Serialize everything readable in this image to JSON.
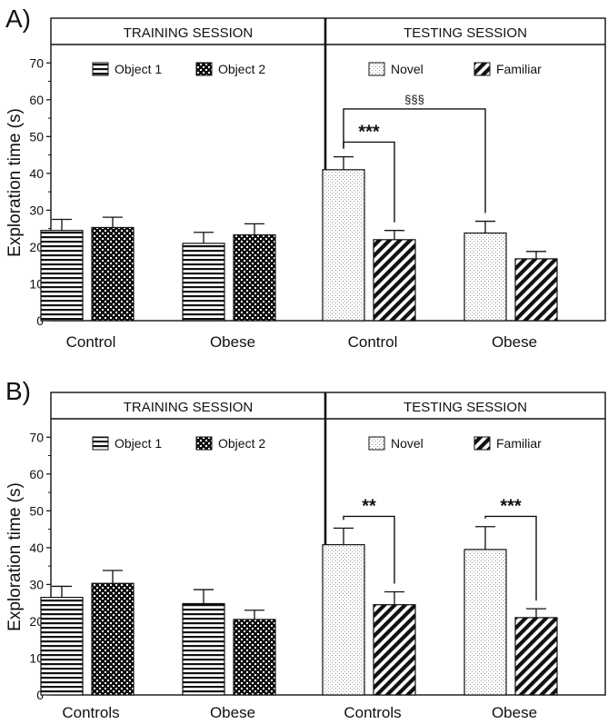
{
  "chart_data": [
    {
      "type": "bar",
      "panel_label": "A)",
      "ylabel": "Exploration time (s)",
      "ylim": [
        0,
        75
      ],
      "yticks": [
        0,
        10,
        20,
        30,
        40,
        50,
        60,
        70
      ],
      "sessions": [
        {
          "title": "TRAINING SESSION",
          "legend": [
            {
              "name": "Object 1",
              "pattern": "hstripes"
            },
            {
              "name": "Object 2",
              "pattern": "checker"
            }
          ],
          "categories": [
            "Control",
            "Obese"
          ],
          "series": [
            {
              "name": "Object 1",
              "pattern": "hstripes",
              "values": [
                24.5,
                21
              ],
              "errors": [
                3,
                3
              ]
            },
            {
              "name": "Object 2",
              "pattern": "checker",
              "values": [
                25.3,
                23.3
              ],
              "errors": [
                2.8,
                3
              ]
            }
          ],
          "annotations": []
        },
        {
          "title": "TESTING SESSION",
          "legend": [
            {
              "name": "Novel",
              "pattern": "dots"
            },
            {
              "name": "Familiar",
              "pattern": "diag"
            }
          ],
          "categories": [
            "Control",
            "Obese"
          ],
          "series": [
            {
              "name": "Novel",
              "pattern": "dots",
              "values": [
                41,
                23.8
              ],
              "errors": [
                3.5,
                3.2
              ]
            },
            {
              "name": "Familiar",
              "pattern": "diag",
              "values": [
                22,
                16.8
              ],
              "errors": [
                2.5,
                2
              ]
            }
          ],
          "annotations": [
            {
              "label": "***",
              "from": [
                0,
                0
              ],
              "to": [
                0,
                1
              ],
              "level": 48.5
            },
            {
              "label": "§§§",
              "from": [
                0,
                0
              ],
              "to": [
                1,
                0
              ],
              "level": 57.5
            }
          ]
        }
      ]
    },
    {
      "type": "bar",
      "panel_label": "B)",
      "ylabel": "Exploration time (s)",
      "ylim": [
        0,
        75
      ],
      "yticks": [
        0,
        10,
        20,
        30,
        40,
        50,
        60,
        70
      ],
      "sessions": [
        {
          "title": "TRAINING SESSION",
          "legend": [
            {
              "name": "Object 1",
              "pattern": "hstripes"
            },
            {
              "name": "Object 2",
              "pattern": "checker"
            }
          ],
          "categories": [
            "Controls",
            "Obese"
          ],
          "series": [
            {
              "name": "Object 1",
              "pattern": "hstripes",
              "values": [
                26.5,
                24.8
              ],
              "errors": [
                3,
                3.8
              ]
            },
            {
              "name": "Object 2",
              "pattern": "checker",
              "values": [
                30.3,
                20.5
              ],
              "errors": [
                3.5,
                2.5
              ]
            }
          ],
          "annotations": []
        },
        {
          "title": "TESTING SESSION",
          "legend": [
            {
              "name": "Novel",
              "pattern": "dots"
            },
            {
              "name": "Familiar",
              "pattern": "diag"
            }
          ],
          "categories": [
            "Controls",
            "Obese"
          ],
          "series": [
            {
              "name": "Novel",
              "pattern": "dots",
              "values": [
                40.8,
                39.5
              ],
              "errors": [
                4.5,
                6.2
              ]
            },
            {
              "name": "Familiar",
              "pattern": "diag",
              "values": [
                24.5,
                21
              ],
              "errors": [
                3.5,
                2.4
              ]
            }
          ],
          "annotations": [
            {
              "label": "**",
              "from": [
                0,
                0
              ],
              "to": [
                0,
                1
              ],
              "level": 48.5
            },
            {
              "label": "***",
              "from": [
                1,
                0
              ],
              "to": [
                1,
                1
              ],
              "level": 48.5
            }
          ]
        }
      ]
    }
  ]
}
